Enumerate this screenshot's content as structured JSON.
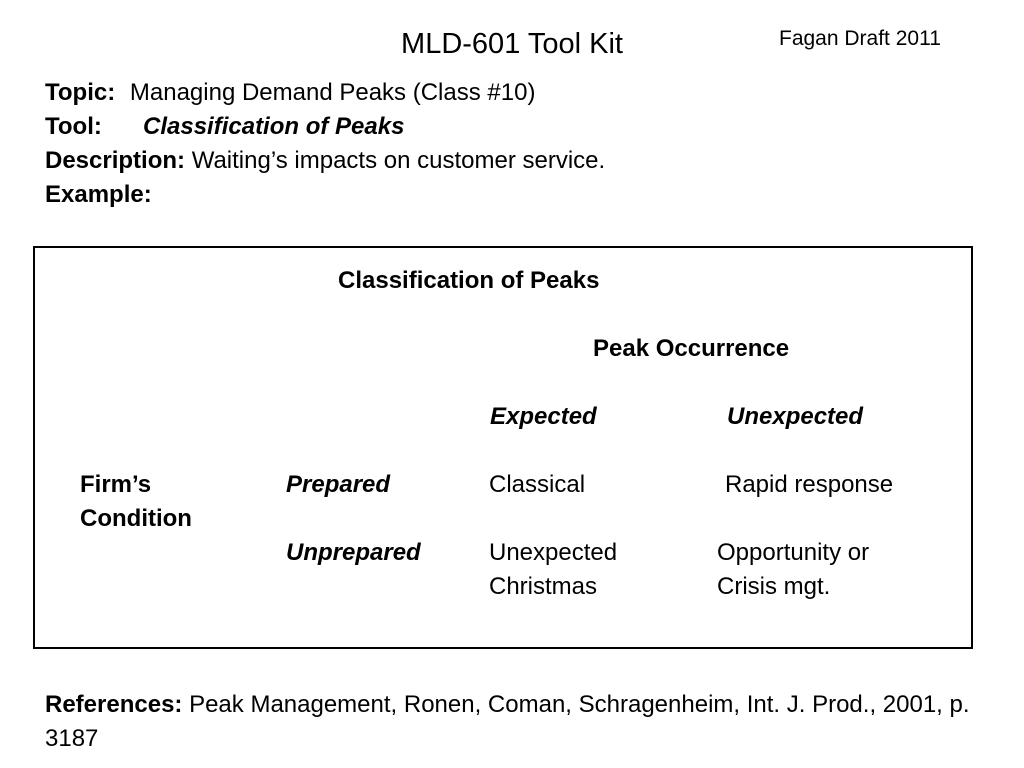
{
  "header": {
    "title": "MLD-601 Tool Kit",
    "draft_note": "Fagan Draft 2011"
  },
  "meta": {
    "topic_label": "Topic:",
    "topic_value": "Managing Demand Peaks (Class #10)",
    "tool_label": "Tool:",
    "tool_value": "Classification of Peaks",
    "description_label": "Description:",
    "description_value": "Waiting’s impacts on customer service.",
    "example_label": "Example:"
  },
  "example_table": {
    "title": "Classification of Peaks",
    "column_group_header": "Peak Occurrence",
    "columns": [
      "Expected",
      "Unexpected"
    ],
    "row_group_label_line1": "Firm’s",
    "row_group_label_line2": "Condition",
    "rows": [
      {
        "label": "Prepared",
        "cells": [
          {
            "line1": "Classical",
            "line2": ""
          },
          {
            "line1": "Rapid response",
            "line2": ""
          }
        ]
      },
      {
        "label": "Unprepared",
        "cells": [
          {
            "line1": "Unexpected",
            "line2": "Christmas"
          },
          {
            "line1": "Opportunity or",
            "line2": "Crisis mgt."
          }
        ]
      }
    ]
  },
  "references": {
    "label": "References:",
    "text": "Peak Management, Ronen, Coman, Schragenheim, Int. J. Prod., 2001, p. 3187"
  }
}
